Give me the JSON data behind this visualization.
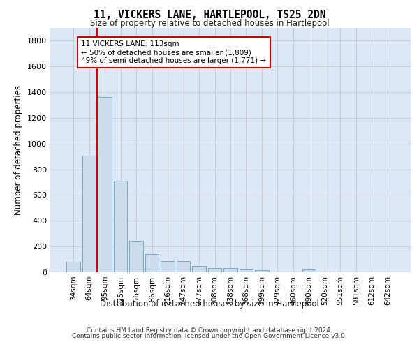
{
  "title": "11, VICKERS LANE, HARTLEPOOL, TS25 2DN",
  "subtitle": "Size of property relative to detached houses in Hartlepool",
  "xlabel": "Distribution of detached houses by size in Hartlepool",
  "ylabel": "Number of detached properties",
  "footer_line1": "Contains HM Land Registry data © Crown copyright and database right 2024.",
  "footer_line2": "Contains public sector information licensed under the Open Government Licence v3.0.",
  "bar_labels": [
    "34sqm",
    "64sqm",
    "95sqm",
    "125sqm",
    "156sqm",
    "186sqm",
    "216sqm",
    "247sqm",
    "277sqm",
    "308sqm",
    "338sqm",
    "368sqm",
    "399sqm",
    "429sqm",
    "460sqm",
    "490sqm",
    "520sqm",
    "551sqm",
    "581sqm",
    "612sqm",
    "642sqm"
  ],
  "bar_values": [
    80,
    905,
    1360,
    710,
    245,
    140,
    85,
    85,
    50,
    30,
    30,
    20,
    18,
    0,
    0,
    20,
    0,
    0,
    0,
    0,
    0
  ],
  "bar_color": "#ccdded",
  "bar_edge_color": "#7aaac8",
  "vline_color": "#cc0000",
  "annotation_text": "11 VICKERS LANE: 113sqm\n← 50% of detached houses are smaller (1,809)\n49% of semi-detached houses are larger (1,771) →",
  "annotation_box_facecolor": "#ffffff",
  "annotation_box_edgecolor": "#cc0000",
  "ylim": [
    0,
    1900
  ],
  "yticks": [
    0,
    200,
    400,
    600,
    800,
    1000,
    1200,
    1400,
    1600,
    1800
  ],
  "grid_color": "#cccccc",
  "plot_bg_color": "#dce8f5"
}
